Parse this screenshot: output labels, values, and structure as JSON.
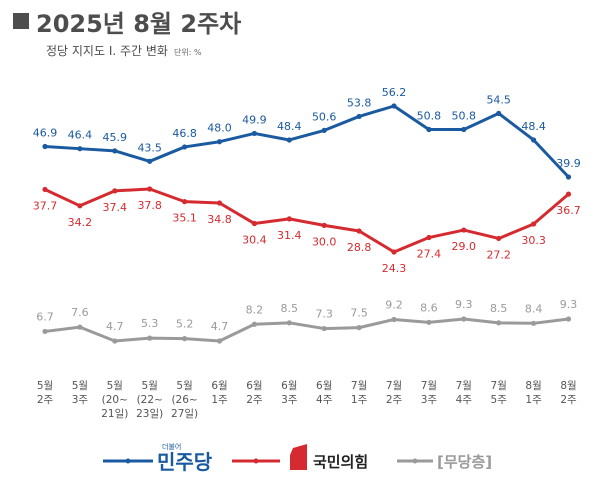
{
  "header": {
    "title": "2025년 8월 2주차",
    "subtitle": "정당 지지도 Ⅰ. 주간 변화",
    "unit": "단위: %"
  },
  "colors": {
    "democratic": "#1a5aa0",
    "ppp": "#d52b30",
    "independent": "#9a9a9a"
  },
  "legend": [
    {
      "name": "민주당",
      "logo_text": "더불어",
      "color": "#1a5aa0",
      "icon": "line-marker"
    },
    {
      "name": "국민의힘",
      "color": "#d52b30",
      "icon": "ppp-logo-shape"
    },
    {
      "name": "[무당층]",
      "color": "#9a9a9a",
      "icon": "line-marker"
    }
  ],
  "chart_data": {
    "type": "line",
    "categories": [
      [
        "5월",
        "2주"
      ],
      [
        "5월",
        "3주"
      ],
      [
        "5월",
        "(20~",
        "21일)"
      ],
      [
        "5월",
        "(22~",
        "23일)"
      ],
      [
        "5월",
        "(26~",
        "27일)"
      ],
      [
        "6월",
        "1주"
      ],
      [
        "6월",
        "2주"
      ],
      [
        "6월",
        "3주"
      ],
      [
        "6월",
        "4주"
      ],
      [
        "7월",
        "1주"
      ],
      [
        "7월",
        "2주"
      ],
      [
        "7월",
        "3주"
      ],
      [
        "7월",
        "4주"
      ],
      [
        "7월",
        "5주"
      ],
      [
        "8월",
        "1주"
      ],
      [
        "8월",
        "2주"
      ]
    ],
    "series": [
      {
        "name": "민주당",
        "color": "#1a5aa0",
        "values": [
          46.9,
          46.4,
          45.9,
          43.5,
          46.8,
          48.0,
          49.9,
          48.4,
          50.6,
          53.8,
          56.2,
          50.8,
          50.8,
          54.5,
          48.4,
          39.9
        ],
        "labels": [
          "46.9",
          "46.4",
          "45.9",
          "43.5",
          "46.8",
          "48.0",
          "49.9",
          "48.4",
          "50.6",
          "53.8",
          "56.2",
          "50.8",
          "50.8",
          "54.5",
          "48.4",
          "39.9"
        ]
      },
      {
        "name": "국민의힘",
        "color": "#d52b30",
        "values": [
          37.7,
          34.2,
          37.4,
          37.8,
          35.1,
          34.8,
          30.4,
          31.4,
          30.0,
          28.8,
          24.3,
          27.4,
          29.0,
          27.2,
          30.3,
          36.7
        ],
        "labels": [
          "37.7",
          "34.2",
          "37.4",
          "37.8",
          "35.1",
          "34.8",
          "30.4",
          "31.4",
          "30.0",
          "28.8",
          "24.3",
          "27.4",
          "29.0",
          "27.2",
          "30.3",
          "36.7"
        ]
      },
      {
        "name": "[무당층]",
        "color": "#9a9a9a",
        "values": [
          6.7,
          7.6,
          4.7,
          5.3,
          5.2,
          4.7,
          8.2,
          8.5,
          7.3,
          7.5,
          9.2,
          8.6,
          9.3,
          8.5,
          8.4,
          9.3
        ],
        "labels": [
          "6.7",
          "7.6",
          "4.7",
          "5.3",
          "5.2",
          "4.7",
          "8.2",
          "8.5",
          "7.3",
          "7.5",
          "9.2",
          "8.6",
          "9.3",
          "8.5",
          "8.4",
          "9.3"
        ]
      }
    ]
  }
}
